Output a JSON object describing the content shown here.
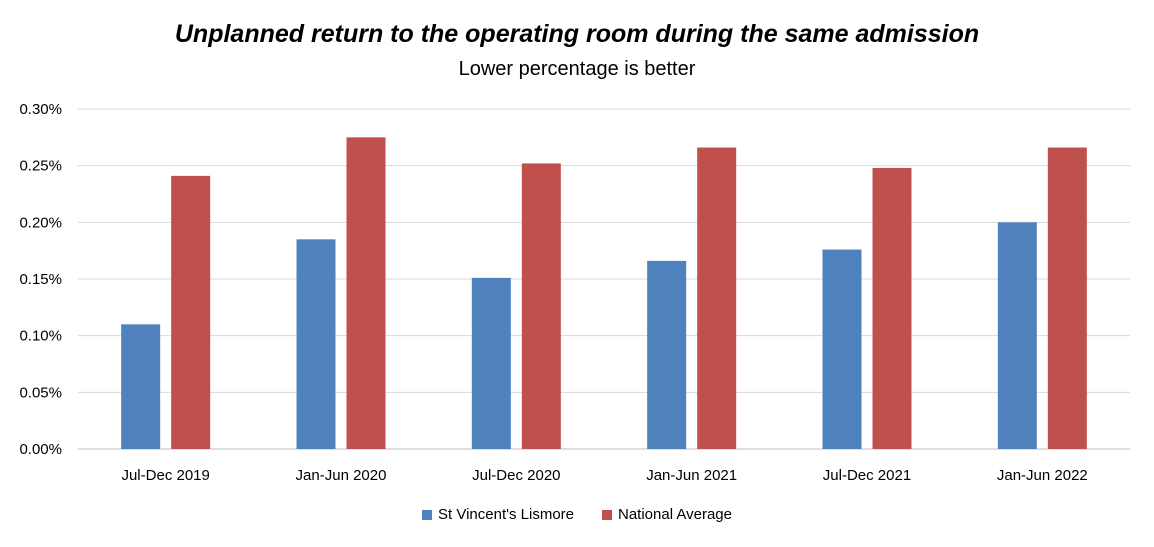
{
  "chart_data": {
    "type": "bar",
    "title": "Unplanned return to the operating room during the same admission",
    "subtitle": "Lower percentage is better",
    "categories": [
      "Jul-Dec 2019",
      "Jan-Jun 2020",
      "Jul-Dec 2020",
      "Jan-Jun 2021",
      "Jul-Dec 2021",
      "Jan-Jun 2022"
    ],
    "series": [
      {
        "name": "St Vincent's Lismore",
        "color": "#4F81BD",
        "values": [
          0.11,
          0.185,
          0.151,
          0.166,
          0.176,
          0.2
        ]
      },
      {
        "name": "National Average",
        "color": "#C0504D",
        "values": [
          0.241,
          0.275,
          0.252,
          0.266,
          0.248,
          0.266
        ]
      }
    ],
    "ylim": [
      0,
      0.3
    ],
    "yticks": [
      "0.00%",
      "0.05%",
      "0.10%",
      "0.15%",
      "0.20%",
      "0.25%",
      "0.30%"
    ],
    "ytick_values": [
      0,
      0.05,
      0.1,
      0.15,
      0.2,
      0.25,
      0.3
    ],
    "grid": true,
    "legend_position": "bottom"
  }
}
